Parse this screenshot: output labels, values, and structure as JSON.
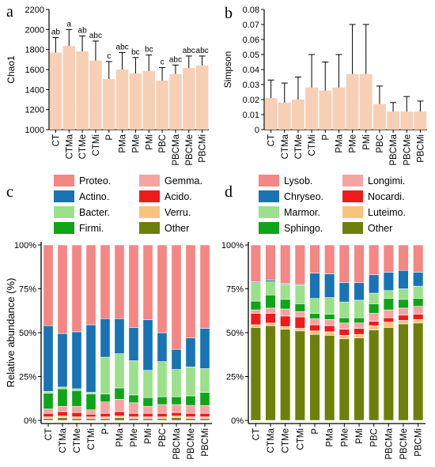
{
  "panels": {
    "a": "a",
    "b": "b",
    "c": "c",
    "d": "d"
  },
  "colors": {
    "bar_fill": "#f7cfb5",
    "Proteo.": "#f48683",
    "Actino.": "#1874b4",
    "Bacter.": "#9be08a",
    "Firmi.": "#0fa519",
    "Gemma.": "#f6a3a1",
    "Acido.": "#ee1b1b",
    "Verru.": "#f7c37d",
    "Other": "#6e7f0a",
    "Lysob.": "#f48683",
    "Chryseo.": "#1874b4",
    "Marmor.": "#9be08a",
    "Sphingo.": "#0fa519",
    "Longimi.": "#f6a3a1",
    "Nocardi.": "#ee1b1b",
    "Luteimo.": "#f7c37d"
  },
  "chart_data": [
    {
      "panel": "a",
      "type": "bar",
      "ylabel": "Chao1",
      "categories": [
        "CT",
        "CTMa",
        "CTMe",
        "CTMi",
        "P",
        "PMa",
        "PMe",
        "PMi",
        "PBC",
        "PBCMa",
        "PBCMe",
        "PBCMi"
      ],
      "values": [
        1770,
        1835,
        1780,
        1690,
        1505,
        1600,
        1560,
        1585,
        1490,
        1555,
        1615,
        1640
      ],
      "errors": [
        150,
        165,
        155,
        195,
        175,
        170,
        160,
        160,
        130,
        90,
        120,
        95
      ],
      "letters": [
        "ab",
        "a",
        "ab",
        "abc",
        "c",
        "abc",
        "bc",
        "bc",
        "c",
        "abc",
        "abc",
        "abc"
      ],
      "ylim": [
        1000,
        2200
      ],
      "yticks": [
        1000,
        1200,
        1400,
        1600,
        1800,
        2000,
        2200
      ]
    },
    {
      "panel": "b",
      "type": "bar",
      "ylabel": "Simpson",
      "categories": [
        "CT",
        "CTMa",
        "CTMe",
        "CTMi",
        "P",
        "PMa",
        "PMe",
        "PMi",
        "PBC",
        "PBCMa",
        "PBCMe",
        "PBCMi"
      ],
      "values": [
        0.021,
        0.018,
        0.02,
        0.028,
        0.026,
        0.028,
        0.037,
        0.037,
        0.017,
        0.012,
        0.012,
        0.012
      ],
      "errors": [
        0.012,
        0.013,
        0.015,
        0.022,
        0.019,
        0.022,
        0.033,
        0.033,
        0.012,
        0.006,
        0.01,
        0.007
      ],
      "ylim": [
        0,
        0.08
      ],
      "yticks": [
        0,
        0.01,
        0.02,
        0.03,
        0.04,
        0.05,
        0.06,
        0.07,
        0.08
      ]
    },
    {
      "panel": "c",
      "type": "bar",
      "stacked": true,
      "ylabel": "Relative abundance (%)",
      "categories": [
        "CT",
        "CTMa",
        "CTMe",
        "CTMi",
        "P",
        "PMa",
        "PMe",
        "PMi",
        "PBC",
        "PBCMa",
        "PBCMe",
        "PBCMi"
      ],
      "yticks": [
        "0%",
        "25%",
        "50%",
        "75%",
        "100%"
      ],
      "legend": [
        "Proteo.",
        "Gemma.",
        "Actino.",
        "Acido.",
        "Bacter.",
        "Verru.",
        "Firmi.",
        "Other"
      ],
      "series": [
        {
          "name": "Other",
          "values": [
            1.0,
            1.5,
            1.0,
            1.0,
            1.0,
            1.5,
            1.0,
            1.0,
            1.0,
            1.5,
            1.0,
            1.0
          ]
        },
        {
          "name": "Verru.",
          "values": [
            1.0,
            1.0,
            1.0,
            1.0,
            1.0,
            1.0,
            1.0,
            1.0,
            1.0,
            1.0,
            1.0,
            1.0
          ]
        },
        {
          "name": "Acido.",
          "values": [
            2.0,
            2.5,
            2.5,
            1.5,
            2.0,
            2.5,
            2.0,
            2.0,
            2.0,
            2.0,
            2.0,
            2.0
          ]
        },
        {
          "name": "Gemma.",
          "values": [
            2.5,
            3.0,
            3.5,
            2.5,
            6.5,
            7.0,
            6.0,
            4.0,
            5.0,
            4.5,
            4.5,
            4.5
          ]
        },
        {
          "name": "Firmi.",
          "values": [
            9.0,
            10.0,
            9.0,
            9.0,
            4.5,
            6.5,
            4.5,
            5.0,
            4.5,
            4.5,
            5.5,
            7.5
          ]
        },
        {
          "name": "Bacter.",
          "values": [
            1.0,
            1.0,
            1.0,
            1.0,
            21.0,
            19.5,
            19.5,
            15.5,
            20.0,
            15.5,
            16.5,
            13.5
          ]
        },
        {
          "name": "Actino.",
          "values": [
            37.5,
            30.5,
            32.5,
            38.5,
            22.0,
            20.0,
            19.0,
            29.0,
            16.5,
            11.5,
            16.5,
            23.0
          ]
        },
        {
          "name": "Proteo.",
          "values": [
            46.0,
            50.5,
            49.5,
            45.5,
            42.0,
            42.0,
            47.0,
            42.5,
            50.0,
            59.5,
            53.0,
            47.5
          ]
        }
      ]
    },
    {
      "panel": "d",
      "type": "bar",
      "stacked": true,
      "categories": [
        "CT",
        "CTMa",
        "CTMe",
        "CTMi",
        "P",
        "PMa",
        "PMe",
        "PMi",
        "PBC",
        "PBCMa",
        "PBCMe",
        "PBCMi"
      ],
      "yticks": [
        "0%",
        "25%",
        "50%",
        "75%",
        "100%"
      ],
      "legend": [
        "Lysob.",
        "Longimi.",
        "Chryseo.",
        "Nocardi.",
        "Marmor.",
        "Luteimo.",
        "Sphingo.",
        "Other"
      ],
      "series": [
        {
          "name": "Other",
          "values": [
            53.0,
            54.0,
            52.0,
            51.0,
            49.0,
            48.5,
            46.5,
            47.0,
            51.5,
            53.0,
            55.0,
            55.5
          ]
        },
        {
          "name": "Luteimo.",
          "values": [
            1.5,
            1.5,
            1.5,
            1.5,
            2.0,
            2.0,
            2.0,
            2.0,
            2.5,
            3.0,
            2.0,
            2.0
          ]
        },
        {
          "name": "Nocardi.",
          "values": [
            6.5,
            5.5,
            6.0,
            6.5,
            3.5,
            3.5,
            3.5,
            3.5,
            2.5,
            2.5,
            3.0,
            3.0
          ]
        },
        {
          "name": "Longimi.",
          "values": [
            2.0,
            3.0,
            4.0,
            3.0,
            3.5,
            3.5,
            3.5,
            3.0,
            4.5,
            4.5,
            4.0,
            4.5
          ]
        },
        {
          "name": "Sphingo.",
          "values": [
            5.0,
            7.5,
            5.5,
            4.5,
            3.0,
            3.0,
            3.0,
            3.0,
            5.5,
            6.5,
            5.0,
            4.5
          ]
        },
        {
          "name": "Marmor.",
          "values": [
            10.5,
            7.5,
            8.5,
            10.5,
            8.5,
            9.5,
            9.0,
            10.0,
            6.0,
            4.5,
            6.0,
            7.0
          ]
        },
        {
          "name": "Chryseo.",
          "values": [
            0.5,
            1.0,
            0.5,
            0.5,
            14.5,
            13.5,
            11.0,
            10.0,
            10.5,
            10.5,
            10.5,
            8.0
          ]
        },
        {
          "name": "Lysob.",
          "values": [
            21.0,
            20.0,
            22.0,
            22.5,
            16.0,
            16.5,
            21.5,
            21.5,
            17.0,
            15.5,
            14.5,
            15.5
          ]
        }
      ]
    }
  ]
}
